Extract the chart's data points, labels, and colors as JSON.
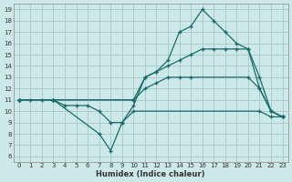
{
  "xlabel": "Humidex (Indice chaleur)",
  "bg_color": "#cce8e8",
  "grid_color": "#aacccc",
  "line_color": "#1a6b6b",
  "xlim": [
    -0.5,
    23.5
  ],
  "ylim": [
    5.5,
    19.5
  ],
  "xticks": [
    0,
    1,
    2,
    3,
    4,
    5,
    6,
    7,
    8,
    9,
    10,
    11,
    12,
    13,
    14,
    15,
    16,
    17,
    18,
    19,
    20,
    21,
    22,
    23
  ],
  "yticks": [
    6,
    7,
    8,
    9,
    10,
    11,
    12,
    13,
    14,
    15,
    16,
    17,
    18,
    19
  ],
  "lines": [
    {
      "x": [
        0,
        1,
        2,
        3,
        4,
        5,
        6,
        7,
        8,
        9,
        10,
        21,
        22,
        23
      ],
      "y": [
        11,
        11,
        11,
        11,
        10.5,
        10.5,
        10.5,
        10,
        9,
        9,
        10,
        10,
        9.5,
        9.5
      ]
    },
    {
      "x": [
        0,
        3,
        10,
        11,
        12,
        13,
        14,
        15,
        20,
        21,
        22,
        23
      ],
      "y": [
        11,
        11,
        11,
        12,
        12.5,
        13,
        13,
        13,
        13,
        12,
        10,
        9.5
      ]
    },
    {
      "x": [
        0,
        3,
        10,
        11,
        12,
        13,
        14,
        15,
        16,
        17,
        18,
        19,
        20,
        21,
        22,
        23
      ],
      "y": [
        11,
        11,
        11,
        13,
        13.5,
        14,
        14.5,
        15,
        15.5,
        15.5,
        15.5,
        15.5,
        15.5,
        13,
        10,
        9.5
      ]
    },
    {
      "x": [
        0,
        3,
        7,
        8,
        9,
        10,
        11,
        12,
        13,
        14,
        15,
        16,
        17,
        18,
        19,
        20,
        21,
        22,
        23
      ],
      "y": [
        11,
        11,
        8,
        6.5,
        9,
        10.5,
        13,
        13.5,
        14.5,
        17,
        17.5,
        19,
        18,
        17,
        16,
        15.5,
        12,
        10,
        9.5
      ]
    }
  ]
}
